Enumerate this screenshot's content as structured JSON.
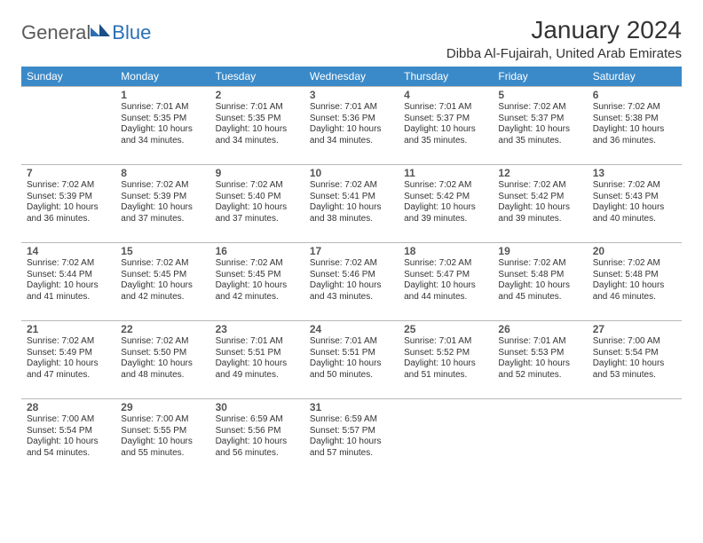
{
  "logo": {
    "part1": "General",
    "part2": "Blue"
  },
  "title": "January 2024",
  "location": "Dibba Al-Fujairah, United Arab Emirates",
  "colors": {
    "header_bg": "#3a8ac9",
    "header_fg": "#ffffff",
    "border": "#b8b8b8",
    "text": "#333333",
    "logo_gray": "#5a5a5a",
    "logo_blue": "#2a6fb5"
  },
  "dow": [
    "Sunday",
    "Monday",
    "Tuesday",
    "Wednesday",
    "Thursday",
    "Friday",
    "Saturday"
  ],
  "weeks": [
    [
      null,
      {
        "n": "1",
        "sr": "Sunrise: 7:01 AM",
        "ss": "Sunset: 5:35 PM",
        "dl": "Daylight: 10 hours and 34 minutes."
      },
      {
        "n": "2",
        "sr": "Sunrise: 7:01 AM",
        "ss": "Sunset: 5:35 PM",
        "dl": "Daylight: 10 hours and 34 minutes."
      },
      {
        "n": "3",
        "sr": "Sunrise: 7:01 AM",
        "ss": "Sunset: 5:36 PM",
        "dl": "Daylight: 10 hours and 34 minutes."
      },
      {
        "n": "4",
        "sr": "Sunrise: 7:01 AM",
        "ss": "Sunset: 5:37 PM",
        "dl": "Daylight: 10 hours and 35 minutes."
      },
      {
        "n": "5",
        "sr": "Sunrise: 7:02 AM",
        "ss": "Sunset: 5:37 PM",
        "dl": "Daylight: 10 hours and 35 minutes."
      },
      {
        "n": "6",
        "sr": "Sunrise: 7:02 AM",
        "ss": "Sunset: 5:38 PM",
        "dl": "Daylight: 10 hours and 36 minutes."
      }
    ],
    [
      {
        "n": "7",
        "sr": "Sunrise: 7:02 AM",
        "ss": "Sunset: 5:39 PM",
        "dl": "Daylight: 10 hours and 36 minutes."
      },
      {
        "n": "8",
        "sr": "Sunrise: 7:02 AM",
        "ss": "Sunset: 5:39 PM",
        "dl": "Daylight: 10 hours and 37 minutes."
      },
      {
        "n": "9",
        "sr": "Sunrise: 7:02 AM",
        "ss": "Sunset: 5:40 PM",
        "dl": "Daylight: 10 hours and 37 minutes."
      },
      {
        "n": "10",
        "sr": "Sunrise: 7:02 AM",
        "ss": "Sunset: 5:41 PM",
        "dl": "Daylight: 10 hours and 38 minutes."
      },
      {
        "n": "11",
        "sr": "Sunrise: 7:02 AM",
        "ss": "Sunset: 5:42 PM",
        "dl": "Daylight: 10 hours and 39 minutes."
      },
      {
        "n": "12",
        "sr": "Sunrise: 7:02 AM",
        "ss": "Sunset: 5:42 PM",
        "dl": "Daylight: 10 hours and 39 minutes."
      },
      {
        "n": "13",
        "sr": "Sunrise: 7:02 AM",
        "ss": "Sunset: 5:43 PM",
        "dl": "Daylight: 10 hours and 40 minutes."
      }
    ],
    [
      {
        "n": "14",
        "sr": "Sunrise: 7:02 AM",
        "ss": "Sunset: 5:44 PM",
        "dl": "Daylight: 10 hours and 41 minutes."
      },
      {
        "n": "15",
        "sr": "Sunrise: 7:02 AM",
        "ss": "Sunset: 5:45 PM",
        "dl": "Daylight: 10 hours and 42 minutes."
      },
      {
        "n": "16",
        "sr": "Sunrise: 7:02 AM",
        "ss": "Sunset: 5:45 PM",
        "dl": "Daylight: 10 hours and 42 minutes."
      },
      {
        "n": "17",
        "sr": "Sunrise: 7:02 AM",
        "ss": "Sunset: 5:46 PM",
        "dl": "Daylight: 10 hours and 43 minutes."
      },
      {
        "n": "18",
        "sr": "Sunrise: 7:02 AM",
        "ss": "Sunset: 5:47 PM",
        "dl": "Daylight: 10 hours and 44 minutes."
      },
      {
        "n": "19",
        "sr": "Sunrise: 7:02 AM",
        "ss": "Sunset: 5:48 PM",
        "dl": "Daylight: 10 hours and 45 minutes."
      },
      {
        "n": "20",
        "sr": "Sunrise: 7:02 AM",
        "ss": "Sunset: 5:48 PM",
        "dl": "Daylight: 10 hours and 46 minutes."
      }
    ],
    [
      {
        "n": "21",
        "sr": "Sunrise: 7:02 AM",
        "ss": "Sunset: 5:49 PM",
        "dl": "Daylight: 10 hours and 47 minutes."
      },
      {
        "n": "22",
        "sr": "Sunrise: 7:02 AM",
        "ss": "Sunset: 5:50 PM",
        "dl": "Daylight: 10 hours and 48 minutes."
      },
      {
        "n": "23",
        "sr": "Sunrise: 7:01 AM",
        "ss": "Sunset: 5:51 PM",
        "dl": "Daylight: 10 hours and 49 minutes."
      },
      {
        "n": "24",
        "sr": "Sunrise: 7:01 AM",
        "ss": "Sunset: 5:51 PM",
        "dl": "Daylight: 10 hours and 50 minutes."
      },
      {
        "n": "25",
        "sr": "Sunrise: 7:01 AM",
        "ss": "Sunset: 5:52 PM",
        "dl": "Daylight: 10 hours and 51 minutes."
      },
      {
        "n": "26",
        "sr": "Sunrise: 7:01 AM",
        "ss": "Sunset: 5:53 PM",
        "dl": "Daylight: 10 hours and 52 minutes."
      },
      {
        "n": "27",
        "sr": "Sunrise: 7:00 AM",
        "ss": "Sunset: 5:54 PM",
        "dl": "Daylight: 10 hours and 53 minutes."
      }
    ],
    [
      {
        "n": "28",
        "sr": "Sunrise: 7:00 AM",
        "ss": "Sunset: 5:54 PM",
        "dl": "Daylight: 10 hours and 54 minutes."
      },
      {
        "n": "29",
        "sr": "Sunrise: 7:00 AM",
        "ss": "Sunset: 5:55 PM",
        "dl": "Daylight: 10 hours and 55 minutes."
      },
      {
        "n": "30",
        "sr": "Sunrise: 6:59 AM",
        "ss": "Sunset: 5:56 PM",
        "dl": "Daylight: 10 hours and 56 minutes."
      },
      {
        "n": "31",
        "sr": "Sunrise: 6:59 AM",
        "ss": "Sunset: 5:57 PM",
        "dl": "Daylight: 10 hours and 57 minutes."
      },
      null,
      null,
      null
    ]
  ]
}
